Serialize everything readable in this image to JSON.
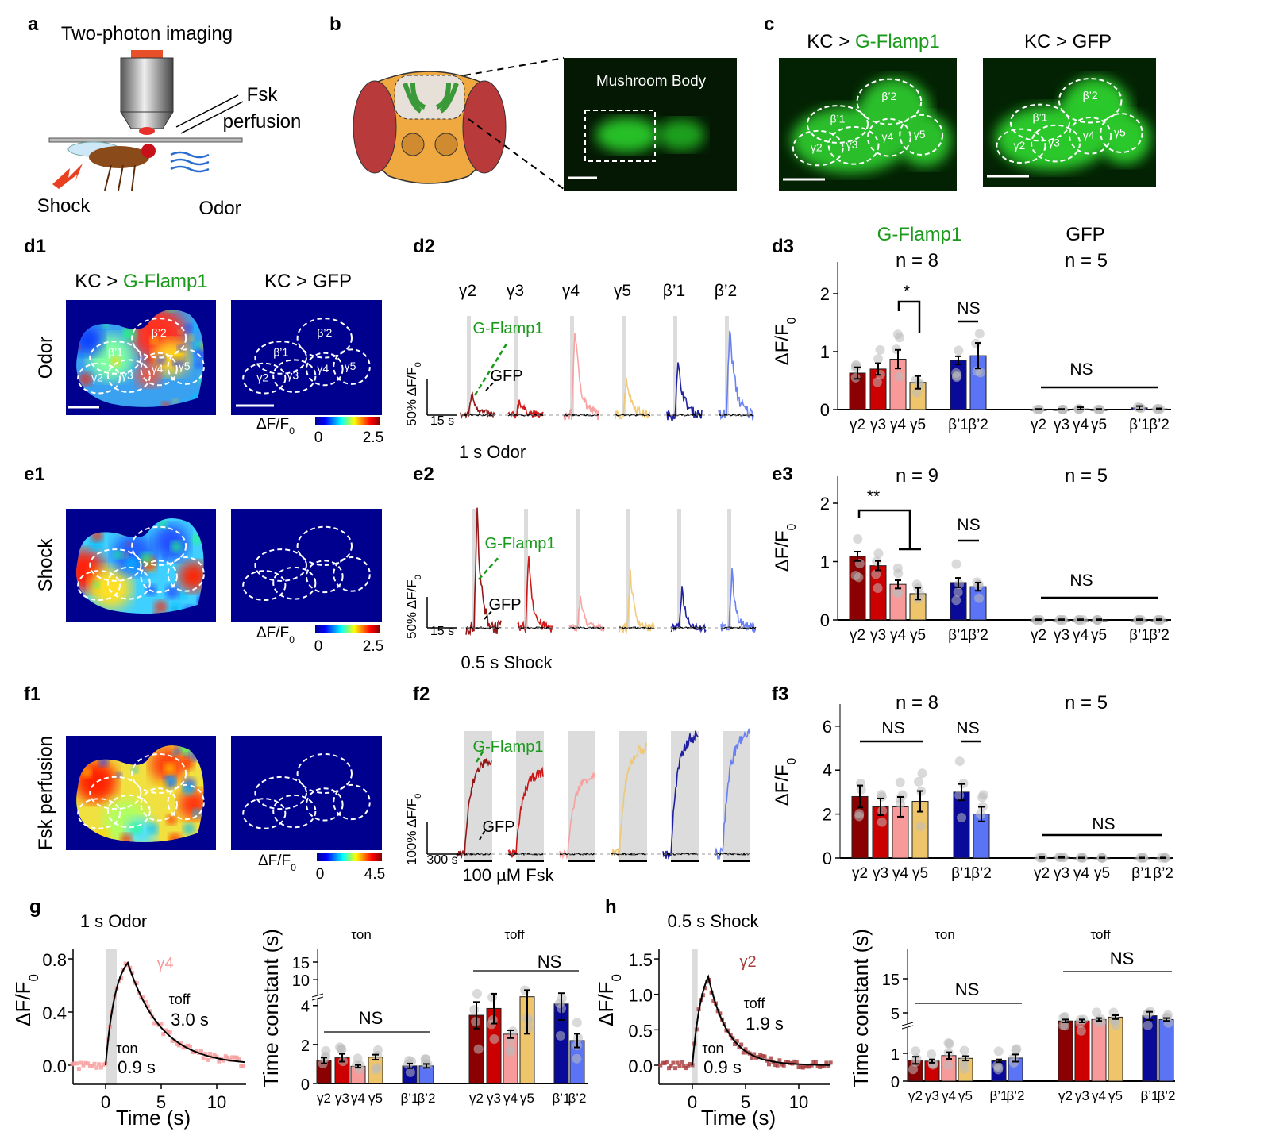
{
  "panel_labels": {
    "a": "a",
    "b": "b",
    "c": "c",
    "d1": "d1",
    "d2": "d2",
    "d3": "d3",
    "e1": "e1",
    "e2": "e2",
    "e3": "e3",
    "f1": "f1",
    "f2": "f2",
    "f3": "f3",
    "g": "g",
    "h": "h"
  },
  "panel_a": {
    "title": "Two-photon imaging",
    "perfusion_line1": "Fsk",
    "perfusion_line2": "perfusion",
    "shock": "Shock",
    "odor": "Odor"
  },
  "panel_b": {
    "image_label": "Mushroom Body"
  },
  "panel_c": {
    "prefix": "KC > ",
    "sensor": "G-Flamp1",
    "control": "KC > GFP"
  },
  "roi_labels": [
    "β’1",
    "β’2",
    "γ2",
    "γ3",
    "γ4",
    "γ5"
  ],
  "d1_titles": {
    "prefix": "KC > ",
    "sensor": "G-Flamp1",
    "control": "KC > GFP"
  },
  "imaging_rows": [
    {
      "row_label": "Odor",
      "colorbar_min": "0",
      "colorbar_max": "2.5"
    },
    {
      "row_label": "Shock",
      "colorbar_min": "0",
      "colorbar_max": "2.5"
    },
    {
      "row_label": "Fsk perfusion",
      "colorbar_min": "0",
      "colorbar_max": "4.5"
    }
  ],
  "colorbar": {
    "label": "ΔF/F",
    "sub": "0"
  },
  "colors": {
    "sensor_green": "#1a9a1a",
    "regions": [
      "#8b0000",
      "#cc0000",
      "#f89a9a",
      "#efc56c",
      "#0a0a9a",
      "#5b73f5"
    ],
    "control_trace": "#000000",
    "stimulus_band": "#dcdcdc"
  },
  "chart_data": [
    {
      "panel": "d2",
      "type": "line",
      "regions": [
        "γ2",
        "γ3",
        "γ4",
        "γ5",
        "β’1",
        "β’2"
      ],
      "sensor_label": "G-Flamp1",
      "control_label": "GFP",
      "stimulus_label": "1 s Odor",
      "scale_y": "50% ΔF/F",
      "scale_y_sub": "0",
      "scale_x": "15 s",
      "peak_dff": [
        0.3,
        0.2,
        1.2,
        0.5,
        0.7,
        1.2
      ]
    },
    {
      "panel": "e2",
      "type": "line",
      "regions": [
        "γ2",
        "γ3",
        "γ4",
        "γ5",
        "β’1",
        "β’2"
      ],
      "sensor_label": "G-Flamp1",
      "control_label": "GFP",
      "stimulus_label": "0.5 s Shock",
      "scale_y": "50% ΔF/F",
      "scale_y_sub": "0",
      "scale_x": "15 s",
      "peak_dff": [
        1.9,
        1.2,
        0.5,
        0.9,
        0.65,
        0.9
      ]
    },
    {
      "panel": "f2",
      "type": "line",
      "regions": [
        "γ2",
        "γ3",
        "γ4",
        "γ5",
        "β’1",
        "β’2"
      ],
      "sensor_label": "G-Flamp1",
      "control_label": "GFP",
      "stimulus_label": "100 µM Fsk",
      "scale_y": "100% ΔF/F",
      "scale_y_sub": "0",
      "scale_x": "300 s",
      "peak_dff": [
        3.0,
        2.6,
        2.5,
        3.4,
        3.8,
        3.8
      ]
    },
    {
      "panel": "d3",
      "type": "bar",
      "ylabel": "ΔF/F",
      "ylabel_sub": "0",
      "yticks": [
        "0",
        "1",
        "2"
      ],
      "ylim": [
        0,
        2.4
      ],
      "groups": [
        {
          "title": "G-Flamp1",
          "n": "n = 8",
          "categories": [
            "γ2",
            "γ3",
            "γ4",
            "γ5",
            "β’1",
            "β’2"
          ],
          "values": [
            0.63,
            0.7,
            0.87,
            0.47,
            0.85,
            0.93
          ],
          "errors": [
            0.1,
            0.1,
            0.16,
            0.11,
            0.07,
            0.22
          ]
        },
        {
          "title": "GFP",
          "n": "n = 5",
          "categories": [
            "γ2",
            "γ3",
            "γ4",
            "γ5",
            "β’1",
            "β’2"
          ],
          "values": [
            0.0,
            0.0,
            0.01,
            0.0,
            0.03,
            0.01
          ],
          "errors": [
            0.01,
            0.01,
            0.03,
            0.01,
            0.03,
            0.01
          ]
        }
      ],
      "annotations": [
        "*",
        "NS",
        "NS"
      ]
    },
    {
      "panel": "e3",
      "type": "bar",
      "ylabel": "ΔF/F",
      "ylabel_sub": "0",
      "yticks": [
        "0",
        "1",
        "2"
      ],
      "ylim": [
        0,
        2.4
      ],
      "groups": [
        {
          "n": "n = 9",
          "categories": [
            "γ2",
            "γ3",
            "γ4",
            "γ5",
            "β’1",
            "β’2"
          ],
          "values": [
            1.09,
            0.93,
            0.61,
            0.45,
            0.64,
            0.57
          ],
          "errors": [
            0.08,
            0.08,
            0.07,
            0.1,
            0.08,
            0.07
          ]
        },
        {
          "n": "n = 5",
          "categories": [
            "γ2",
            "γ3",
            "γ4",
            "γ5",
            "β’1",
            "β’2"
          ],
          "values": [
            0.0,
            0.0,
            0.0,
            0.0,
            0.0,
            0.0
          ],
          "errors": [
            0.01,
            0.01,
            0.01,
            0.01,
            0.01,
            0.01
          ]
        }
      ],
      "annotations": [
        "**",
        "NS",
        "NS"
      ]
    },
    {
      "panel": "f3",
      "type": "bar",
      "ylabel": "ΔF/F",
      "ylabel_sub": "0",
      "yticks": [
        "0",
        "2",
        "4",
        "6"
      ],
      "ylim": [
        0,
        7
      ],
      "groups": [
        {
          "n": "n = 8",
          "categories": [
            "γ2",
            "γ3",
            "γ4",
            "γ5",
            "β’1",
            "β’2"
          ],
          "values": [
            2.8,
            2.33,
            2.33,
            2.58,
            3.0,
            2.0
          ],
          "errors": [
            0.5,
            0.38,
            0.45,
            0.47,
            0.37,
            0.33
          ]
        },
        {
          "n": "n = 5",
          "categories": [
            "γ2",
            "γ3",
            "γ4",
            "γ5",
            "β’1",
            "β’2"
          ],
          "values": [
            0.02,
            0.03,
            0.01,
            0.01,
            0.01,
            0.01
          ],
          "errors": [
            0.02,
            0.02,
            0.01,
            0.01,
            0.01,
            0.01
          ]
        }
      ],
      "annotations": [
        "NS",
        "NS",
        "NS"
      ]
    },
    {
      "panel": "g-left",
      "type": "line",
      "title": "1 s Odor",
      "series_label": "γ4",
      "xlabel": "Time (s)",
      "ylabel": "ΔF/F",
      "ylabel_sub": "0",
      "xticks": [
        "0",
        "5",
        "10"
      ],
      "yticks": [
        "0.0",
        "0.4",
        "0.8"
      ],
      "xlim": [
        -3,
        12.5
      ],
      "stimulus_s": [
        0,
        1
      ],
      "peak": 0.77,
      "peak_time_s": 2,
      "tau_on_label": "τon",
      "tau_on_value": "0.9 s",
      "tau_on_s": 0.9,
      "tau_off_label": "τoff",
      "tau_off_value": "3.0 s",
      "tau_off_s": 3.0
    },
    {
      "panel": "g-right",
      "type": "bar",
      "ylabel": "Time constant (s)",
      "yticks": [
        "0",
        "2",
        "4",
        "10",
        "15"
      ],
      "axis_break": true,
      "groups": [
        {
          "title": "τon",
          "categories": [
            "γ2",
            "γ3",
            "γ4",
            "γ5",
            "β’1",
            "β’2"
          ],
          "values": [
            1.18,
            1.32,
            0.88,
            1.35,
            0.9,
            0.9
          ],
          "errors": [
            0.15,
            0.2,
            0.07,
            0.13,
            0.12,
            0.1
          ]
        },
        {
          "title": "τoff",
          "categories": [
            "γ2",
            "γ3",
            "γ4",
            "γ5",
            "β’1",
            "β’2"
          ],
          "values": [
            3.5,
            3.85,
            2.53,
            4.45,
            4.08,
            2.2
          ],
          "errors": [
            0.68,
            0.78,
            0.2,
            1.9,
            0.82,
            0.35
          ]
        }
      ],
      "annotations": [
        "NS",
        "NS"
      ]
    },
    {
      "panel": "h-left",
      "type": "line",
      "title": "0.5 s Shock",
      "series_label": "γ2",
      "xlabel": "Time (s)",
      "ylabel": "ΔF/F",
      "ylabel_sub": "0",
      "xticks": [
        "0",
        "5",
        "10"
      ],
      "yticks": [
        "0.0",
        "0.5",
        "1.0",
        "1.5"
      ],
      "xlim": [
        -3,
        13
      ],
      "stimulus_s": [
        0,
        0.5
      ],
      "peak": 1.25,
      "peak_time_s": 1.5,
      "tau_on_label": "τon",
      "tau_on_value": "0.9 s",
      "tau_on_s": 0.9,
      "tau_off_label": "τoff",
      "tau_off_value": "1.9 s",
      "tau_off_s": 1.9
    },
    {
      "panel": "h-right",
      "type": "bar",
      "ylabel": "Time constant (s)",
      "yticks": [
        "0",
        "1",
        "5",
        "15"
      ],
      "axis_break": true,
      "groups": [
        {
          "title": "τon",
          "categories": [
            "γ2",
            "γ3",
            "γ4",
            "γ5",
            "β’1",
            "β’2"
          ],
          "values": [
            0.75,
            0.72,
            0.92,
            0.82,
            0.73,
            0.83
          ],
          "errors": [
            0.13,
            0.06,
            0.12,
            0.08,
            0.05,
            0.13
          ]
        },
        {
          "title": "τoff",
          "categories": [
            "γ2",
            "γ3",
            "γ4",
            "γ5",
            "β’1",
            "β’2"
          ],
          "values": [
            3.3,
            3.3,
            3.6,
            4.1,
            4.4,
            3.6
          ],
          "errors": [
            0.3,
            0.3,
            0.3,
            0.4,
            0.9,
            0.3
          ]
        }
      ],
      "annotations": [
        "NS",
        "NS"
      ]
    }
  ]
}
